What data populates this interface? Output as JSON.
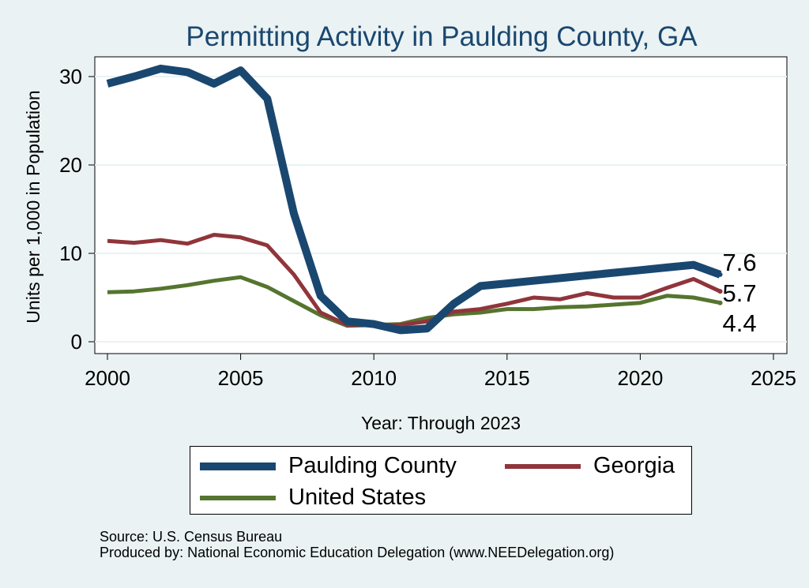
{
  "chart_data": {
    "type": "line",
    "title": "Permitting Activity in Paulding County, GA",
    "xlabel": "Year: Through 2023",
    "ylabel": "Units per 1,000 in Population",
    "xlim": [
      2000,
      2025
    ],
    "ylim": [
      0,
      32
    ],
    "xticks": [
      2000,
      2005,
      2010,
      2015,
      2020,
      2025
    ],
    "yticks": [
      0,
      10,
      20,
      30
    ],
    "grid": "horizontal",
    "x": [
      2000,
      2001,
      2002,
      2003,
      2004,
      2005,
      2006,
      2007,
      2008,
      2009,
      2010,
      2011,
      2012,
      2013,
      2014,
      2015,
      2016,
      2017,
      2018,
      2019,
      2020,
      2021,
      2022,
      2023
    ],
    "series": [
      {
        "name": "Paulding County",
        "color": "#1a476f",
        "values": [
          29.2,
          30.0,
          30.9,
          30.5,
          29.2,
          30.7,
          27.5,
          14.5,
          5.2,
          2.3,
          2.0,
          1.3,
          1.5,
          4.3,
          6.3,
          6.6,
          6.9,
          7.2,
          7.5,
          7.8,
          8.1,
          8.4,
          8.7,
          7.6
        ]
      },
      {
        "name": "Georgia",
        "color": "#90353b",
        "values": [
          11.4,
          11.2,
          11.5,
          11.1,
          12.1,
          11.8,
          10.9,
          7.6,
          3.3,
          1.9,
          1.9,
          1.9,
          2.3,
          3.4,
          3.7,
          4.3,
          5.0,
          4.8,
          5.5,
          5.0,
          5.0,
          6.1,
          7.1,
          5.7
        ]
      },
      {
        "name": "United States",
        "color": "#55752f",
        "values": [
          5.6,
          5.7,
          6.0,
          6.4,
          6.9,
          7.3,
          6.2,
          4.6,
          3.0,
          1.8,
          1.9,
          2.0,
          2.7,
          3.1,
          3.3,
          3.7,
          3.7,
          3.9,
          4.0,
          4.2,
          4.4,
          5.2,
          5.0,
          4.4
        ]
      }
    ],
    "end_labels": [
      "7.6",
      "5.7",
      "4.4"
    ],
    "legend": "bottom"
  },
  "source": {
    "line1": "Source: U.S. Census Bureau",
    "line2": "Produced by: National Economic Education Delegation (www.NEEDelegation.org)"
  }
}
